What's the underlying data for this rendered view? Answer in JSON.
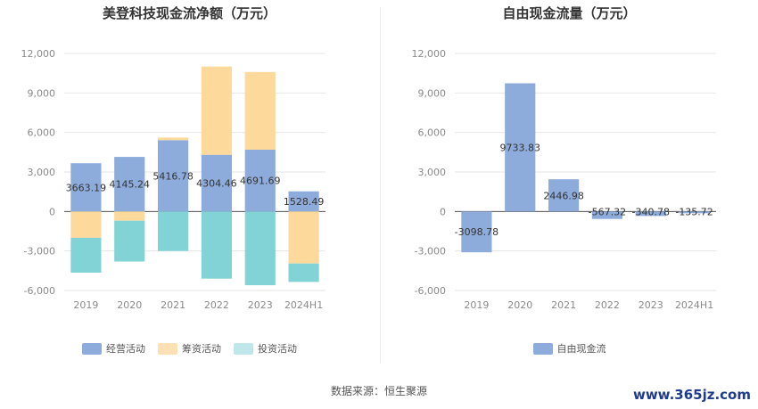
{
  "chart_data": [
    {
      "type": "bar",
      "stacked": true,
      "title": "美登科技现金流净额（万元）",
      "categories": [
        "2019",
        "2020",
        "2021",
        "2022",
        "2023",
        "2024H1"
      ],
      "series": [
        {
          "name": "经营活动",
          "color": "#8eacdb",
          "values": [
            3663.19,
            4145.24,
            5416.78,
            4304.46,
            4691.69,
            1528.49
          ],
          "labels": [
            "3663.19",
            "4145.24",
            "5416.78",
            "4304.46",
            "4691.69",
            "1528.49"
          ]
        },
        {
          "name": "筹资活动",
          "color": "#fdd99b",
          "values": [
            -2000,
            -700,
            200,
            6700,
            5900,
            -3950
          ]
        },
        {
          "name": "投资活动",
          "color": "#82d3d6",
          "values": [
            -2650,
            -3100,
            -3000,
            -5100,
            -5600,
            -1400
          ]
        }
      ],
      "yticks": [
        12000,
        9000,
        6000,
        3000,
        0,
        -3000,
        -6000
      ],
      "ytick_labels": [
        "12,000",
        "9,000",
        "6,000",
        "3,000",
        "0",
        "-3,000",
        "-6,000"
      ],
      "ylim": [
        -6000,
        12000
      ],
      "legend_position": "bottom",
      "legend_colors": [
        "#8eacdb",
        "#fde0b3",
        "#bfe7ea"
      ],
      "grid": true
    },
    {
      "type": "bar",
      "title": "自由现金流量（万元）",
      "categories": [
        "2019",
        "2020",
        "2021",
        "2022",
        "2023",
        "2024H1"
      ],
      "series": [
        {
          "name": "自由现金流",
          "color": "#8eacdb",
          "values": [
            -3098.78,
            9733.83,
            2446.98,
            -567.32,
            -340.78,
            -135.72
          ],
          "labels": [
            "-3098.78",
            "9733.83",
            "2446.98",
            "-567.32",
            "-340.78",
            "-135.72"
          ]
        }
      ],
      "yticks": [
        12000,
        9000,
        6000,
        3000,
        0,
        -3000,
        -6000
      ],
      "ytick_labels": [
        "12,000",
        "9,000",
        "6,000",
        "3,000",
        "0",
        "-3,000",
        "-6,000"
      ],
      "ylim": [
        -6000,
        12000
      ],
      "legend_position": "bottom",
      "grid": true
    }
  ],
  "footer": {
    "source": "数据来源：恒生聚源",
    "watermark": "www.365jz.com"
  }
}
